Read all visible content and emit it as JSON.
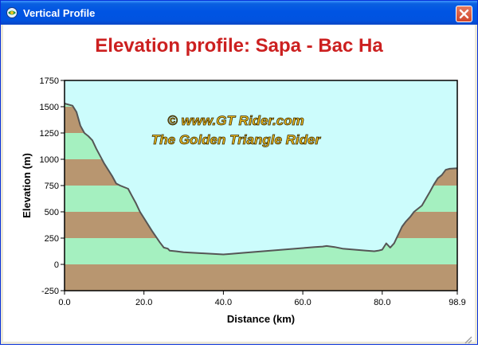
{
  "window": {
    "title": "Vertical Profile",
    "icon": "app-globe-icon",
    "close_icon": "close-icon"
  },
  "chart_data": {
    "type": "area",
    "title": "Elevation profile: Sapa - Bac Ha",
    "xlabel": "Distance   (km)",
    "ylabel": "Elevation  (m)",
    "xlim": [
      0,
      98.9
    ],
    "ylim": [
      -250,
      1750
    ],
    "x_ticks": [
      "0.0",
      "20.0",
      "40.0",
      "60.0",
      "80.0",
      "98.9"
    ],
    "y_ticks": [
      "-250",
      "0",
      "250",
      "500",
      "750",
      "1000",
      "1250",
      "1500",
      "1750"
    ],
    "watermark": [
      "©  www.GT Rider.com",
      "The Golden Triangle Rider"
    ],
    "colors": {
      "sky": "#ccfcfc",
      "band_brown": "#b89670",
      "band_green": "#a5f0c0",
      "line": "#555555",
      "title": "#cc2020",
      "watermark_fill": "#f2c020"
    },
    "x": [
      0,
      2,
      3,
      4,
      5,
      6,
      7,
      8,
      10,
      12,
      13,
      14,
      16,
      17,
      18,
      19,
      20,
      22,
      24,
      25,
      26,
      26.5,
      28,
      30,
      35,
      40,
      42,
      45,
      50,
      55,
      60,
      63,
      65,
      66,
      68,
      70,
      73,
      76,
      78,
      79,
      80,
      81,
      82,
      83,
      84,
      85,
      86,
      87,
      88,
      90,
      92,
      93,
      94,
      95,
      96,
      97,
      98.9
    ],
    "y": [
      1530,
      1510,
      1450,
      1320,
      1250,
      1220,
      1180,
      1100,
      960,
      840,
      770,
      750,
      720,
      650,
      580,
      500,
      440,
      320,
      210,
      160,
      150,
      130,
      125,
      115,
      105,
      95,
      100,
      110,
      125,
      140,
      155,
      165,
      170,
      175,
      165,
      150,
      140,
      130,
      125,
      130,
      140,
      200,
      160,
      200,
      280,
      360,
      410,
      450,
      500,
      560,
      690,
      760,
      820,
      850,
      900,
      910,
      915
    ]
  }
}
